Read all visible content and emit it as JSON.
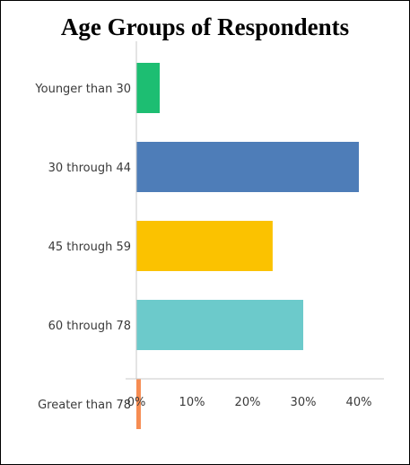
{
  "chart_data": {
    "type": "bar",
    "orientation": "horizontal",
    "title": "Age Groups of Respondents",
    "categories": [
      "Younger than 30",
      "30 through 44",
      "45 through 59",
      "60 through 78",
      "Greater than 78"
    ],
    "values": [
      4.2,
      40.0,
      24.5,
      30.0,
      0.8
    ],
    "value_unit": "%",
    "xlim": [
      0,
      45
    ],
    "xticks": [
      "0%",
      "10%",
      "20%",
      "30%",
      "40%"
    ],
    "xtick_values": [
      0,
      10,
      20,
      30,
      40
    ],
    "colors": [
      "#1dbe72",
      "#4e7db8",
      "#fbc200",
      "#6ccacb",
      "#f68c52"
    ],
    "grid": false
  }
}
